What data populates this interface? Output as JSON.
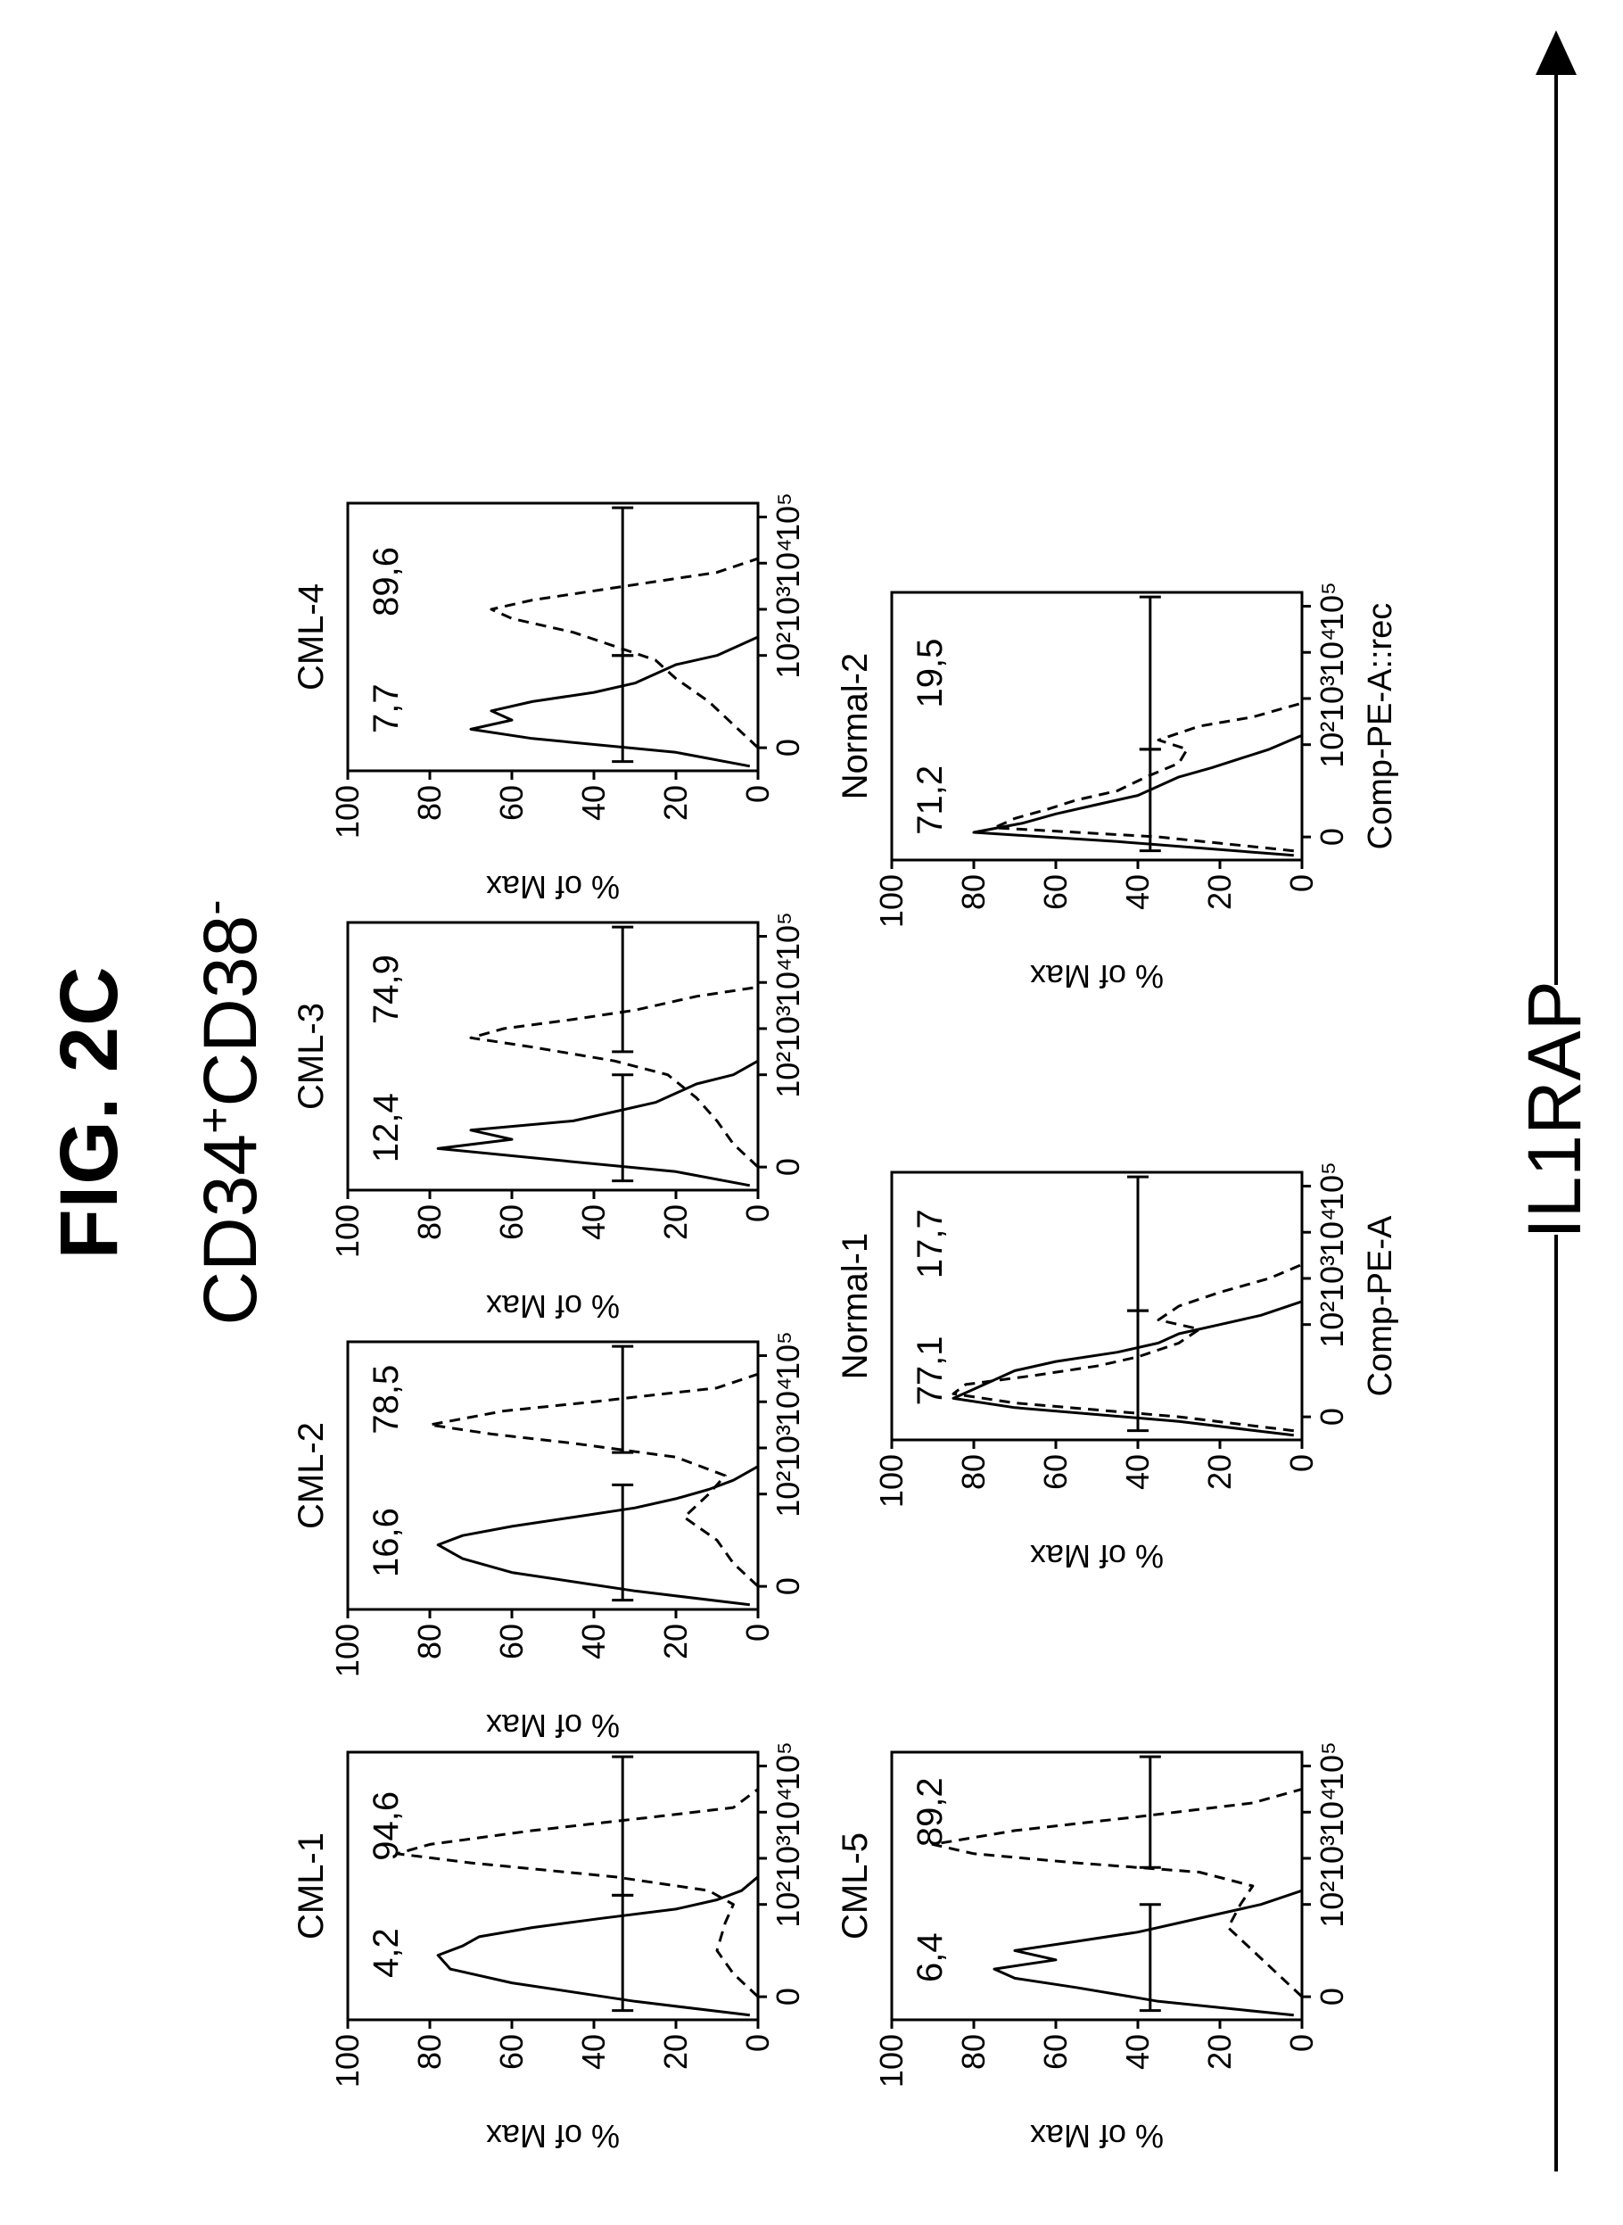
{
  "figure": {
    "title": "FIG. 2C",
    "population": {
      "main": "CD34",
      "sup1": "+",
      "mid": "CD38",
      "sup2": "-"
    },
    "axis_banner": "IL1RAP"
  },
  "chart_data": [
    {
      "type": "line",
      "name": "CML-1",
      "row": 1,
      "col": 1,
      "xlabel": "",
      "ylabel": "% of Max",
      "ylim": [
        0,
        100
      ],
      "x_ticks": [
        "0",
        "10²",
        "10³",
        "10⁴",
        "10⁵"
      ],
      "y_ticks": [
        "0",
        "20",
        "40",
        "60",
        "80",
        "100"
      ],
      "gates": [
        {
          "label": "4,2",
          "y": 33,
          "from": -0.3,
          "to": 2.2
        },
        {
          "label": "94,6",
          "y": 33,
          "from": 2.2,
          "to": 5.2
        }
      ],
      "series": [
        {
          "style": "solid",
          "x": [
            -0.4,
            -0.1,
            0.3,
            0.6,
            0.9,
            1.1,
            1.3,
            1.5,
            1.7,
            1.9,
            2.1,
            2.3,
            2.6
          ],
          "y": [
            2,
            30,
            60,
            75,
            78,
            72,
            68,
            55,
            38,
            20,
            10,
            4,
            0
          ]
        },
        {
          "style": "dashed",
          "x": [
            0.0,
            0.5,
            1.0,
            1.6,
            2.0,
            2.3,
            2.6,
            2.9,
            3.1,
            3.3,
            3.6,
            3.9,
            4.1,
            4.5
          ],
          "y": [
            0,
            6,
            10,
            8,
            6,
            12,
            35,
            70,
            88,
            80,
            55,
            25,
            6,
            0
          ]
        }
      ]
    },
    {
      "type": "line",
      "name": "CML-2",
      "row": 1,
      "col": 2,
      "xlabel": "",
      "ylabel": "% of Max",
      "ylim": [
        0,
        100
      ],
      "x_ticks": [
        "0",
        "10²",
        "10³",
        "10⁴",
        "10⁵"
      ],
      "y_ticks": [
        "0",
        "20",
        "40",
        "60",
        "80",
        "100"
      ],
      "gates": [
        {
          "label": "16,6",
          "y": 33,
          "from": -0.3,
          "to": 2.2
        },
        {
          "label": "78,5",
          "y": 33,
          "from": 2.9,
          "to": 5.2
        }
      ],
      "series": [
        {
          "style": "solid",
          "x": [
            -0.4,
            -0.1,
            0.3,
            0.6,
            0.9,
            1.1,
            1.3,
            1.5,
            1.7,
            1.9,
            2.1,
            2.3,
            2.6
          ],
          "y": [
            2,
            30,
            60,
            72,
            78,
            72,
            60,
            45,
            30,
            20,
            12,
            6,
            0
          ]
        },
        {
          "style": "dashed",
          "x": [
            0.0,
            0.5,
            1.0,
            1.5,
            2.0,
            2.4,
            2.8,
            3.1,
            3.3,
            3.5,
            3.8,
            4.0,
            4.3,
            4.6
          ],
          "y": [
            0,
            6,
            10,
            18,
            12,
            8,
            20,
            45,
            65,
            80,
            62,
            40,
            10,
            0
          ]
        }
      ]
    },
    {
      "type": "line",
      "name": "CML-3",
      "row": 1,
      "col": 3,
      "xlabel": "",
      "ylabel": "% of Max",
      "ylim": [
        0,
        100
      ],
      "x_ticks": [
        "0",
        "10²",
        "10³",
        "10⁴",
        "10⁵"
      ],
      "y_ticks": [
        "0",
        "20",
        "40",
        "60",
        "80",
        "100"
      ],
      "gates": [
        {
          "label": "12,4",
          "y": 33,
          "from": -0.3,
          "to": 2.0
        },
        {
          "label": "74,9",
          "y": 33,
          "from": 2.5,
          "to": 5.2
        }
      ],
      "series": [
        {
          "style": "solid",
          "x": [
            -0.4,
            -0.1,
            0.2,
            0.4,
            0.6,
            0.8,
            1.0,
            1.2,
            1.4,
            1.6,
            1.8,
            2.0,
            2.3
          ],
          "y": [
            2,
            20,
            55,
            78,
            60,
            70,
            45,
            35,
            25,
            20,
            15,
            6,
            0
          ]
        },
        {
          "style": "dashed",
          "x": [
            0.0,
            0.5,
            1.0,
            1.5,
            2.0,
            2.3,
            2.6,
            2.8,
            3.0,
            3.2,
            3.4,
            3.7,
            3.9
          ],
          "y": [
            0,
            6,
            10,
            15,
            22,
            35,
            55,
            70,
            62,
            45,
            30,
            15,
            0
          ]
        }
      ]
    },
    {
      "type": "line",
      "name": "CML-4",
      "row": 1,
      "col": 4,
      "xlabel": "",
      "ylabel": "% of Max",
      "ylim": [
        0,
        100
      ],
      "x_ticks": [
        "0",
        "10²",
        "10³",
        "10⁴",
        "10⁵"
      ],
      "y_ticks": [
        "0",
        "20",
        "40",
        "60",
        "80",
        "100"
      ],
      "gates": [
        {
          "label": "7,7",
          "y": 33,
          "from": -0.3,
          "to": 2.0
        },
        {
          "label": "89,6",
          "y": 33,
          "from": 2.0,
          "to": 5.2
        }
      ],
      "series": [
        {
          "style": "solid",
          "x": [
            -0.4,
            -0.1,
            0.2,
            0.4,
            0.6,
            0.8,
            1.0,
            1.2,
            1.4,
            1.6,
            1.8,
            2.0,
            2.4
          ],
          "y": [
            2,
            20,
            55,
            70,
            60,
            65,
            55,
            40,
            30,
            25,
            20,
            10,
            0
          ]
        },
        {
          "style": "dashed",
          "x": [
            0.0,
            0.5,
            1.0,
            1.5,
            1.9,
            2.2,
            2.5,
            2.8,
            3.0,
            3.2,
            3.4,
            3.6,
            3.8,
            4.1
          ],
          "y": [
            0,
            6,
            12,
            20,
            25,
            35,
            45,
            60,
            65,
            55,
            40,
            25,
            10,
            0
          ]
        }
      ]
    },
    {
      "type": "line",
      "name": "CML-5",
      "row": 2,
      "col": 1,
      "xlabel": "",
      "ylabel": "% of Max",
      "ylim": [
        0,
        100
      ],
      "x_ticks": [
        "0",
        "10²",
        "10³",
        "10⁴",
        "10⁵"
      ],
      "y_ticks": [
        "0",
        "20",
        "40",
        "60",
        "80",
        "100"
      ],
      "gates": [
        {
          "label": "6,4",
          "y": 37,
          "from": -0.3,
          "to": 2.0
        },
        {
          "label": "89,2",
          "y": 37,
          "from": 2.8,
          "to": 5.2
        }
      ],
      "series": [
        {
          "style": "solid",
          "x": [
            -0.4,
            -0.1,
            0.2,
            0.4,
            0.6,
            0.8,
            1.0,
            1.2,
            1.4,
            1.6,
            1.8,
            2.0,
            2.3
          ],
          "y": [
            2,
            35,
            55,
            70,
            75,
            60,
            70,
            55,
            40,
            30,
            20,
            10,
            0
          ]
        },
        {
          "style": "dashed",
          "x": [
            0.0,
            0.5,
            1.0,
            1.5,
            2.0,
            2.4,
            2.7,
            2.9,
            3.1,
            3.3,
            3.6,
            3.9,
            4.2,
            4.5
          ],
          "y": [
            0,
            6,
            12,
            18,
            15,
            12,
            25,
            55,
            80,
            90,
            70,
            40,
            12,
            0
          ]
        }
      ]
    },
    {
      "type": "line",
      "name": "Normal-1",
      "row": 2,
      "col": 2,
      "xlabel": "Comp-PE-A",
      "ylabel": "% of Max",
      "ylim": [
        0,
        100
      ],
      "x_ticks": [
        "0",
        "10²",
        "10³",
        "10⁴",
        "10⁵"
      ],
      "y_ticks": [
        "0",
        "20",
        "40",
        "60",
        "80",
        "100"
      ],
      "gates": [
        {
          "label": "77,1",
          "y": 40,
          "from": -0.3,
          "to": 2.3
        },
        {
          "label": "17,7",
          "y": 40,
          "from": 2.3,
          "to": 5.2
        }
      ],
      "series": [
        {
          "style": "solid",
          "x": [
            -0.4,
            -0.1,
            0.2,
            0.4,
            0.6,
            0.8,
            1.0,
            1.2,
            1.4,
            1.6,
            1.8,
            2.0,
            2.2,
            2.5
          ],
          "y": [
            2,
            30,
            70,
            85,
            80,
            75,
            70,
            60,
            45,
            35,
            30,
            20,
            10,
            0
          ]
        },
        {
          "style": "dashed",
          "x": [
            -0.3,
            0.0,
            0.3,
            0.5,
            0.7,
            0.9,
            1.1,
            1.3,
            1.6,
            1.9,
            2.1,
            2.4,
            2.7,
            3.0,
            3.3
          ],
          "y": [
            2,
            30,
            70,
            85,
            82,
            65,
            50,
            40,
            30,
            25,
            35,
            30,
            20,
            8,
            0
          ]
        }
      ]
    },
    {
      "type": "line",
      "name": "Normal-2",
      "row": 2,
      "col": 3,
      "xlabel": "Comp-PE-A::rec",
      "ylabel": "% of Max",
      "ylim": [
        0,
        100
      ],
      "x_ticks": [
        "0",
        "10²",
        "10³",
        "10⁴",
        "10⁵"
      ],
      "y_ticks": [
        "0",
        "20",
        "40",
        "60",
        "80",
        "100"
      ],
      "gates": [
        {
          "label": "71,2",
          "y": 37,
          "from": -0.3,
          "to": 1.9
        },
        {
          "label": "19,5",
          "y": 37,
          "from": 1.9,
          "to": 5.2
        }
      ],
      "series": [
        {
          "style": "solid",
          "x": [
            -0.4,
            -0.1,
            0.1,
            0.3,
            0.5,
            0.7,
            0.9,
            1.1,
            1.3,
            1.5,
            1.7,
            1.9,
            2.2
          ],
          "y": [
            2,
            45,
            80,
            68,
            60,
            50,
            40,
            35,
            30,
            22,
            15,
            8,
            0
          ]
        },
        {
          "style": "dashed",
          "x": [
            -0.3,
            0.0,
            0.2,
            0.4,
            0.6,
            0.8,
            1.0,
            1.3,
            1.6,
            1.9,
            2.1,
            2.4,
            2.6,
            2.9
          ],
          "y": [
            2,
            35,
            75,
            70,
            62,
            55,
            45,
            38,
            30,
            28,
            35,
            25,
            12,
            0
          ]
        }
      ]
    }
  ]
}
